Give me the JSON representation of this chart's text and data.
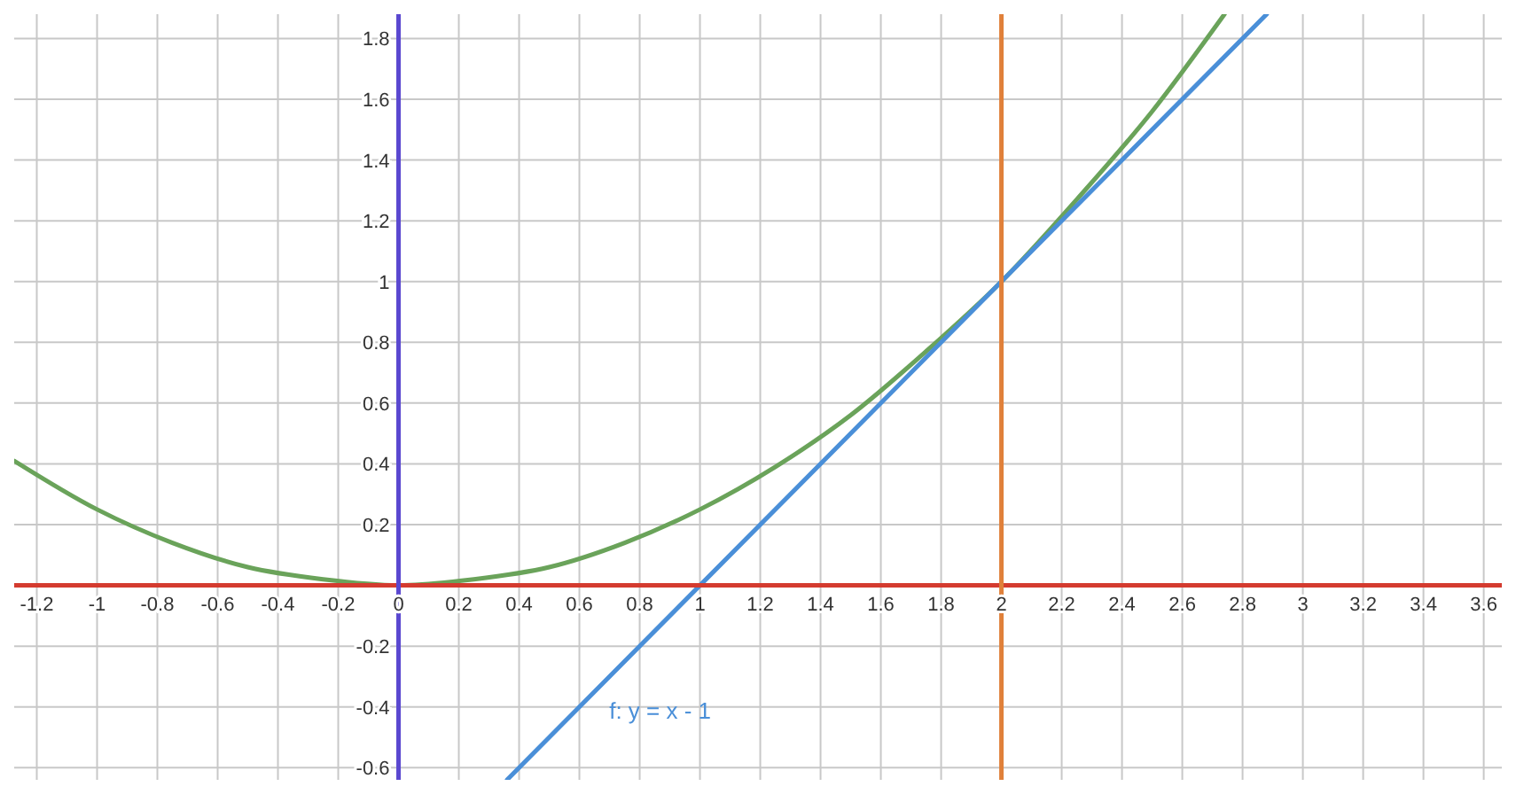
{
  "chart_data": {
    "type": "line",
    "xlim": [
      -1.275,
      3.66
    ],
    "ylim": [
      -0.64,
      1.88
    ],
    "xticks": [
      -1.2,
      -1,
      -0.8,
      -0.6,
      -0.4,
      -0.2,
      {
        "value": 0,
        "label": "0"
      },
      0.2,
      0.4,
      0.6,
      0.8,
      1,
      1.2,
      1.4,
      1.6,
      1.8,
      2,
      2.2,
      2.4,
      2.6,
      2.8,
      3,
      3.2,
      3.4,
      3.6
    ],
    "yticks": [
      -0.6,
      -0.4,
      -0.2,
      {
        "value": 0,
        "label": null
      },
      0.2,
      0.4,
      0.6,
      0.8,
      1,
      1.2,
      1.4,
      1.6,
      1.8
    ],
    "grid": true,
    "marker": "none",
    "line_style": "solid",
    "series": [
      {
        "color": "#6aa35a",
        "x": [
          -1.275,
          -1,
          -0.75,
          -0.5,
          -0.25,
          0,
          0.25,
          0.5,
          0.75,
          1,
          1.25,
          1.5,
          1.75,
          2,
          2.25,
          2.5,
          2.74
        ],
        "values": [
          0.41,
          0.25,
          0.14,
          0.06,
          0.02,
          0,
          0.02,
          0.06,
          0.14,
          0.25,
          0.39,
          0.56,
          0.77,
          1,
          1.27,
          1.56,
          1.88
        ]
      },
      {
        "color": "#4a8fd8",
        "x": [
          0.36,
          2.88
        ],
        "values": [
          -0.64,
          1.88
        ]
      },
      {
        "color": "#d43b2f",
        "x": [
          -1.275,
          3.66
        ],
        "values": [
          0,
          0
        ]
      },
      {
        "color": "#5a48d0",
        "x": [
          0,
          0
        ],
        "values": [
          -0.64,
          1.88
        ]
      },
      {
        "color": "#e0803a",
        "x": [
          2,
          2
        ],
        "values": [
          -0.64,
          1.88
        ]
      }
    ],
    "annotations": [
      "f: y = x - 1"
    ]
  }
}
